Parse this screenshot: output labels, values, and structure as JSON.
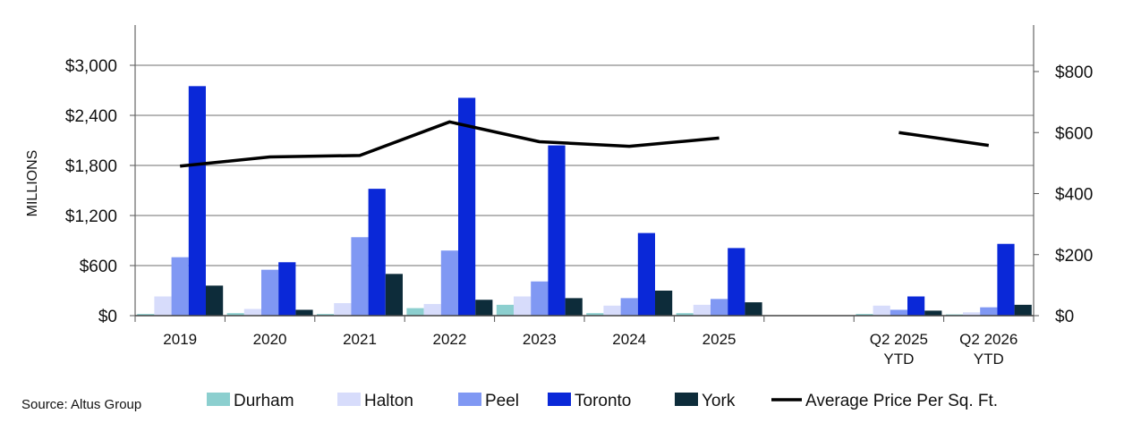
{
  "source_text": "Source: Altus Group",
  "chart_data": {
    "type": "bar",
    "categories": [
      "2019",
      "2020",
      "2021",
      "2022",
      "2023",
      "2024",
      "2025",
      "",
      "Q2 2025\nYTD",
      "Q2 2026\nYTD"
    ],
    "ylabel": "MILLIONS",
    "ylim": [
      0,
      3000
    ],
    "yticks": [
      "$0",
      "$600",
      "$1,200",
      "$1,800",
      "$2,400",
      "$3,000"
    ],
    "y2lim": [
      0,
      800
    ],
    "y2ticks": [
      "$0",
      "$200",
      "$400",
      "$600",
      "$800"
    ],
    "grid": true,
    "legend_position": "bottom",
    "series": [
      {
        "name": "Durham",
        "color": "#8ccfcf",
        "values": [
          20,
          30,
          20,
          90,
          130,
          30,
          30,
          null,
          20,
          15
        ]
      },
      {
        "name": "Halton",
        "color": "#d7dcfb",
        "values": [
          230,
          80,
          150,
          140,
          230,
          120,
          130,
          null,
          120,
          40
        ]
      },
      {
        "name": "Peel",
        "color": "#8098f3",
        "values": [
          700,
          550,
          940,
          780,
          410,
          210,
          200,
          null,
          70,
          100
        ]
      },
      {
        "name": "Toronto",
        "color": "#0a28d8",
        "values": [
          2750,
          640,
          1520,
          2610,
          2040,
          990,
          810,
          null,
          230,
          860
        ]
      },
      {
        "name": "York",
        "color": "#0d2c3a",
        "values": [
          360,
          70,
          500,
          190,
          210,
          300,
          160,
          null,
          60,
          130
        ]
      }
    ],
    "line_series": {
      "name": "Average Price Per Sq. Ft.",
      "color": "#000000",
      "axis": "right",
      "values": [
        490,
        520,
        525,
        635,
        570,
        555,
        582,
        null,
        600,
        558
      ]
    }
  }
}
